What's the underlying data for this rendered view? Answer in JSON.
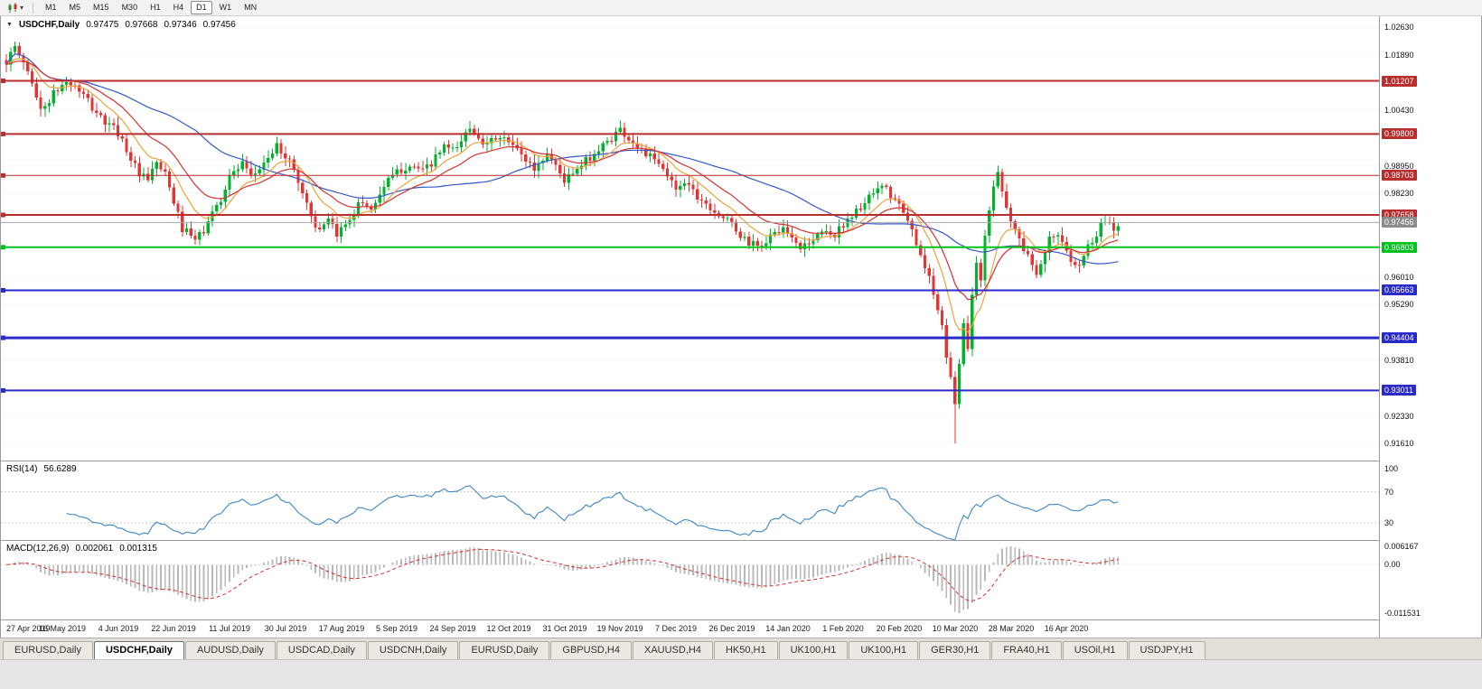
{
  "toolbar": {
    "timeframes": [
      "M1",
      "M5",
      "M15",
      "M30",
      "H1",
      "H4",
      "D1",
      "W1",
      "MN"
    ],
    "active_timeframe": "D1"
  },
  "chart": {
    "symbol_title": "USDCHF,Daily",
    "ohlc": {
      "open": "0.97475",
      "high": "0.97668",
      "low": "0.97346",
      "close": "0.97456"
    }
  },
  "rsi": {
    "label": "RSI(14)",
    "value": "56.6289",
    "period": 14,
    "axis_labels": [
      {
        "text": "100",
        "value": 100
      },
      {
        "text": "70",
        "value": 70
      },
      {
        "text": "30",
        "value": 30
      }
    ],
    "levels": [
      70,
      30
    ],
    "line_color": "#3e86c6"
  },
  "macd": {
    "label": "MACD(12,26,9)",
    "value_main": "0.002061",
    "value_signal": "0.001315",
    "fast": 12,
    "slow": 26,
    "signal": 9,
    "axis_top": "0.006167",
    "axis_zero": "0.00",
    "axis_bottom": "-0.011531",
    "histogram_color": "#b9b9b9",
    "signal_color": "#d43030"
  },
  "price_axis": {
    "range": {
      "top": 1.0263,
      "bottom": 0.9161
    },
    "plain_labels": [
      "1.02630",
      "1.01890",
      "1.00430",
      "0.98950",
      "0.98230",
      "0.96010",
      "0.95290",
      "0.93810",
      "0.92330",
      "0.91610"
    ],
    "tags": [
      {
        "text": "1.01207",
        "price": 1.01207,
        "color": "#b82e2e"
      },
      {
        "text": "0.99800",
        "price": 0.998,
        "color": "#b82e2e"
      },
      {
        "text": "0.98703",
        "price": 0.98703,
        "color": "#b82e2e"
      },
      {
        "text": "0.97658",
        "price": 0.97658,
        "color": "#b82e2e"
      },
      {
        "text": "0.97456",
        "price": 0.97456,
        "color": "#8c8c8c"
      },
      {
        "text": "0.96803",
        "price": 0.96803,
        "color": "#00c21e"
      },
      {
        "text": "0.95663",
        "price": 0.95663,
        "color": "#2a2ac8"
      },
      {
        "text": "0.94404",
        "price": 0.94404,
        "color": "#2a2ac8"
      },
      {
        "text": "0.93011",
        "price": 0.93011,
        "color": "#2a2ac8"
      }
    ]
  },
  "hlines": [
    {
      "price": 1.01207,
      "color": "#b82e2e",
      "width": 2
    },
    {
      "price": 0.998,
      "color": "#b82e2e",
      "width": 2
    },
    {
      "price": 0.98703,
      "color": "#b82e2e",
      "width": 1
    },
    {
      "price": 0.97658,
      "color": "#b82e2e",
      "width": 2
    },
    {
      "price": 0.96803,
      "color": "#00c21e",
      "width": 2
    },
    {
      "price": 0.95663,
      "color": "#2a2ac8",
      "width": 2
    },
    {
      "price": 0.94404,
      "color": "#2a2ac8",
      "width": 3
    },
    {
      "price": 0.93011,
      "color": "#2a2ac8",
      "width": 2
    }
  ],
  "current_price": {
    "price": 0.97456,
    "color": "#a8a8a8"
  },
  "dates": [
    "27 Apr 2019",
    "16 May 2019",
    "4 Jun 2019",
    "22 Jun 2019",
    "11 Jul 2019",
    "30 Jul 2019",
    "17 Aug 2019",
    "5 Sep 2019",
    "24 Sep 2019",
    "12 Oct 2019",
    "31 Oct 2019",
    "19 Nov 2019",
    "7 Dec 2019",
    "26 Dec 2019",
    "14 Jan 2020",
    "1 Feb 2020",
    "20 Feb 2020",
    "10 Mar 2020",
    "28 Mar 2020",
    "16 Apr 2020"
  ],
  "tabs": {
    "active_index": 1,
    "items": [
      "EURUSD,Daily",
      "USDCHF,Daily",
      "AUDUSD,Daily",
      "USDCAD,Daily",
      "USDCNH,Daily",
      "EURUSD,Daily",
      "GBPUSD,H4",
      "XAUUSD,H4",
      "HK50,H1",
      "UK100,H1",
      "UK100,H1",
      "GER30,H1",
      "FRA40,H1",
      "USOil,H1",
      "USDJPY,H1"
    ]
  },
  "chart_data": {
    "type": "candlestick",
    "symbol": "USDCHF",
    "timeframe": "Daily",
    "candle_count": 260,
    "up_color": "#00b42d",
    "down_color": "#e03636",
    "price_anchors": [
      [
        0,
        1.0175
      ],
      [
        2,
        1.0205
      ],
      [
        4,
        1.017
      ],
      [
        6,
        1.012
      ],
      [
        8,
        1.004
      ],
      [
        11,
        1.0085
      ],
      [
        14,
        1.012
      ],
      [
        17,
        1.0095
      ],
      [
        20,
        1.005
      ],
      [
        23,
        1.001
      ],
      [
        26,
        0.9985
      ],
      [
        28,
        0.994
      ],
      [
        31,
        0.987
      ],
      [
        33,
        0.9855
      ],
      [
        35,
        0.9905
      ],
      [
        37,
        0.987
      ],
      [
        39,
        0.98
      ],
      [
        41,
        0.973
      ],
      [
        44,
        0.9698
      ],
      [
        46,
        0.9725
      ],
      [
        48,
        0.977
      ],
      [
        50,
        0.981
      ],
      [
        52,
        0.9868
      ],
      [
        55,
        0.9898
      ],
      [
        57,
        0.9862
      ],
      [
        60,
        0.9905
      ],
      [
        63,
        0.9945
      ],
      [
        65,
        0.9925
      ],
      [
        67,
        0.9885
      ],
      [
        69,
        0.9825
      ],
      [
        71,
        0.9765
      ],
      [
        73,
        0.9718
      ],
      [
        75,
        0.9748
      ],
      [
        77,
        0.9712
      ],
      [
        79,
        0.9745
      ],
      [
        81,
        0.9778
      ],
      [
        83,
        0.9802
      ],
      [
        85,
        0.978
      ],
      [
        87,
        0.9825
      ],
      [
        89,
        0.9855
      ],
      [
        91,
        0.9878
      ],
      [
        94,
        0.9902
      ],
      [
        97,
        0.9878
      ],
      [
        100,
        0.9915
      ],
      [
        102,
        0.9948
      ],
      [
        104,
        0.9932
      ],
      [
        106,
        0.9962
      ],
      [
        108,
        0.9998
      ],
      [
        110,
        0.998
      ],
      [
        112,
        0.9945
      ],
      [
        114,
        0.9972
      ],
      [
        117,
        0.9958
      ],
      [
        120,
        0.9925
      ],
      [
        123,
        0.9888
      ],
      [
        126,
        0.9928
      ],
      [
        128,
        0.9898
      ],
      [
        130,
        0.9858
      ],
      [
        133,
        0.9882
      ],
      [
        136,
        0.992
      ],
      [
        139,
        0.9948
      ],
      [
        141,
        0.9972
      ],
      [
        143,
        0.9992
      ],
      [
        146,
        0.9958
      ],
      [
        149,
        0.9928
      ],
      [
        152,
        0.9898
      ],
      [
        154,
        0.9868
      ],
      [
        156,
        0.9838
      ],
      [
        158,
        0.9858
      ],
      [
        161,
        0.9818
      ],
      [
        164,
        0.9788
      ],
      [
        166,
        0.9768
      ],
      [
        169,
        0.9738
      ],
      [
        172,
        0.97
      ],
      [
        175,
        0.9678
      ],
      [
        178,
        0.9706
      ],
      [
        180,
        0.973
      ],
      [
        182,
        0.9714
      ],
      [
        185,
        0.968
      ],
      [
        188,
        0.9702
      ],
      [
        191,
        0.973
      ],
      [
        193,
        0.9708
      ],
      [
        195,
        0.9744
      ],
      [
        198,
        0.9775
      ],
      [
        201,
        0.9808
      ],
      [
        204,
        0.984
      ],
      [
        206,
        0.9818
      ],
      [
        208,
        0.9788
      ],
      [
        210,
        0.9748
      ],
      [
        212,
        0.9695
      ],
      [
        214,
        0.9635
      ],
      [
        216,
        0.9555
      ],
      [
        218,
        0.9462
      ],
      [
        219,
        0.9395
      ],
      [
        220,
        0.933
      ],
      [
        221,
        0.9272
      ],
      [
        222,
        0.938
      ],
      [
        223,
        0.9475
      ],
      [
        224,
        0.942
      ],
      [
        225,
        0.9545
      ],
      [
        226,
        0.9648
      ],
      [
        227,
        0.96
      ],
      [
        228,
        0.9702
      ],
      [
        229,
        0.9778
      ],
      [
        230,
        0.9845
      ],
      [
        231,
        0.988
      ],
      [
        232,
        0.9838
      ],
      [
        233,
        0.9792
      ],
      [
        234,
        0.9752
      ],
      [
        236,
        0.97
      ],
      [
        238,
        0.9652
      ],
      [
        240,
        0.9618
      ],
      [
        242,
        0.9675
      ],
      [
        244,
        0.9718
      ],
      [
        246,
        0.9688
      ],
      [
        248,
        0.9652
      ],
      [
        250,
        0.9635
      ],
      [
        252,
        0.9682
      ],
      [
        254,
        0.9718
      ],
      [
        256,
        0.9758
      ],
      [
        258,
        0.9728
      ],
      [
        259,
        0.9746
      ]
    ],
    "spikes": [
      {
        "index": 2,
        "high": 1.0225
      },
      {
        "index": 221,
        "low": 0.9161
      },
      {
        "index": 231,
        "high": 0.9896
      }
    ],
    "moving_averages": [
      {
        "period": 10,
        "method": "ema",
        "color": "#f0a23c"
      },
      {
        "period": 20,
        "method": "ema",
        "color": "#d43030"
      },
      {
        "period": 45,
        "method": "sma",
        "color": "#3558c8"
      }
    ]
  }
}
